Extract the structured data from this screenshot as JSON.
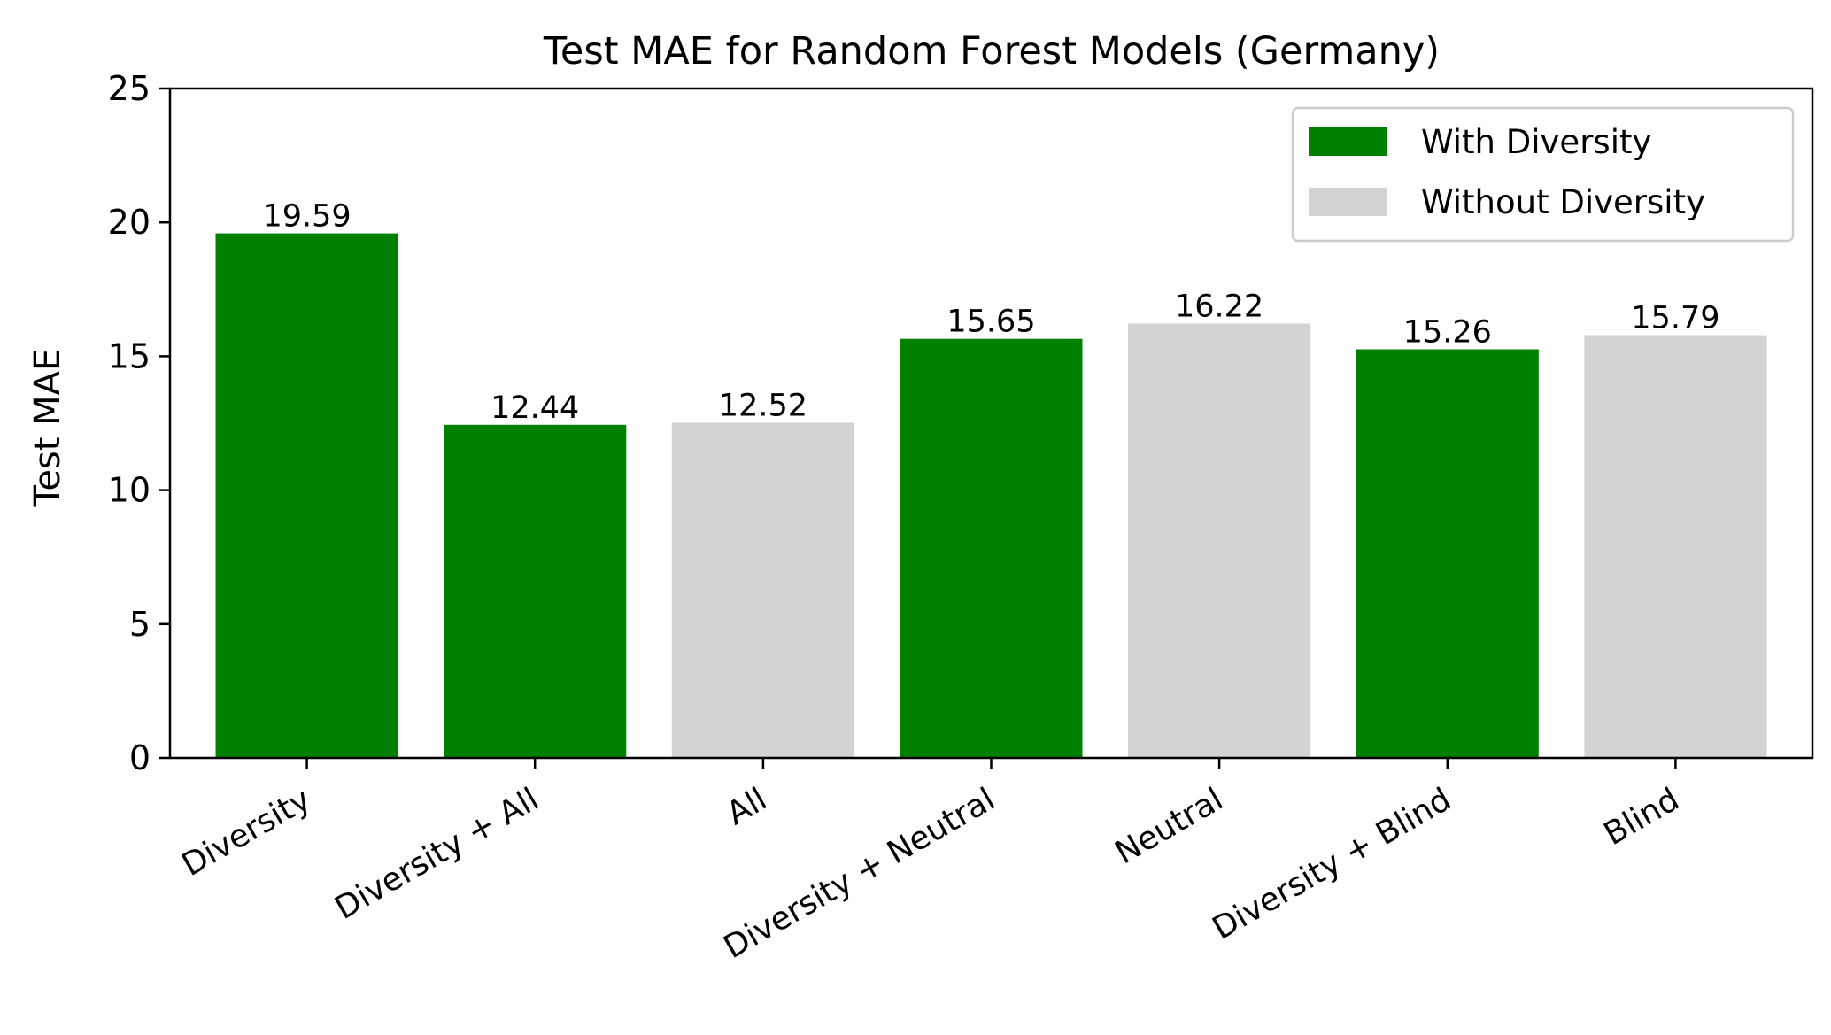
{
  "chart_data": {
    "type": "bar",
    "title": "Test MAE for Random Forest Models (Germany)",
    "xlabel": "",
    "ylabel": "Test MAE",
    "ylim": [
      0,
      25
    ],
    "yticks": [
      "0",
      "5",
      "10",
      "15",
      "20",
      "25"
    ],
    "categories": [
      "Diversity",
      "Diversity + All",
      "All",
      "Diversity + Neutral",
      "Neutral",
      "Diversity + Blind",
      "Blind"
    ],
    "values": [
      19.59,
      12.44,
      12.52,
      15.65,
      16.22,
      15.26,
      15.79
    ],
    "value_labels": [
      "19.59",
      "12.44",
      "12.52",
      "15.65",
      "16.22",
      "15.26",
      "15.79"
    ],
    "groups": [
      "With Diversity",
      "With Diversity",
      "Without Diversity",
      "With Diversity",
      "Without Diversity",
      "With Diversity",
      "Without Diversity"
    ],
    "grid": false,
    "legend": {
      "placement": "top-right",
      "entries": [
        {
          "label": "With Diversity",
          "color": "#008000"
        },
        {
          "label": "Without Diversity",
          "color": "#d3d3d3"
        }
      ]
    }
  }
}
